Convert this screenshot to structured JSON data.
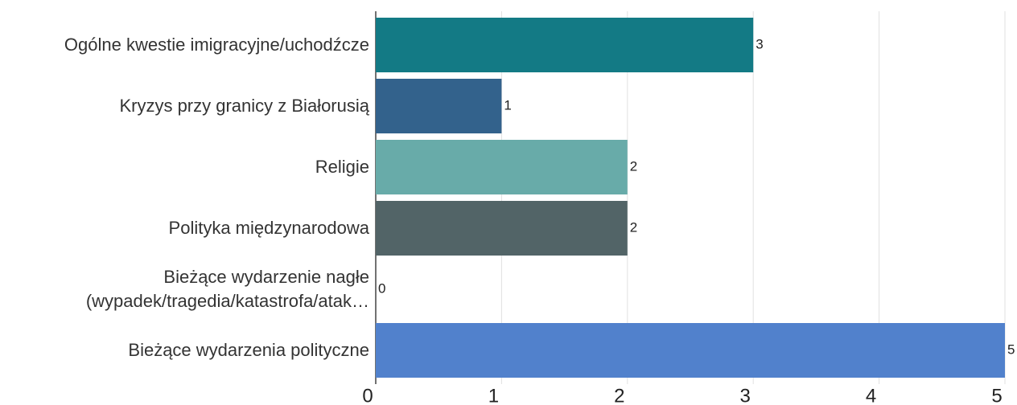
{
  "chart_data": {
    "type": "barh",
    "categories": [
      "Ogólne kwestie imigracyjne/uchodźcze",
      "Kryzys przy granicy z Białorusią",
      "Religie",
      "Polityka międzynarodowa",
      "Bieżące wydarzenie nagłe\n(wypadek/tragedia/katastrofa/atak…",
      "Bieżące wydarzenia polityczne"
    ],
    "values": [
      3,
      1,
      2,
      2,
      0,
      5
    ],
    "colors": [
      "#137a85",
      "#33628c",
      "#68aba9",
      "#526467",
      "#5e7f9c",
      "#5181cc"
    ],
    "xlim": [
      0,
      5
    ],
    "xticks": [
      0,
      1,
      2,
      3,
      4,
      5
    ],
    "grid": true
  }
}
